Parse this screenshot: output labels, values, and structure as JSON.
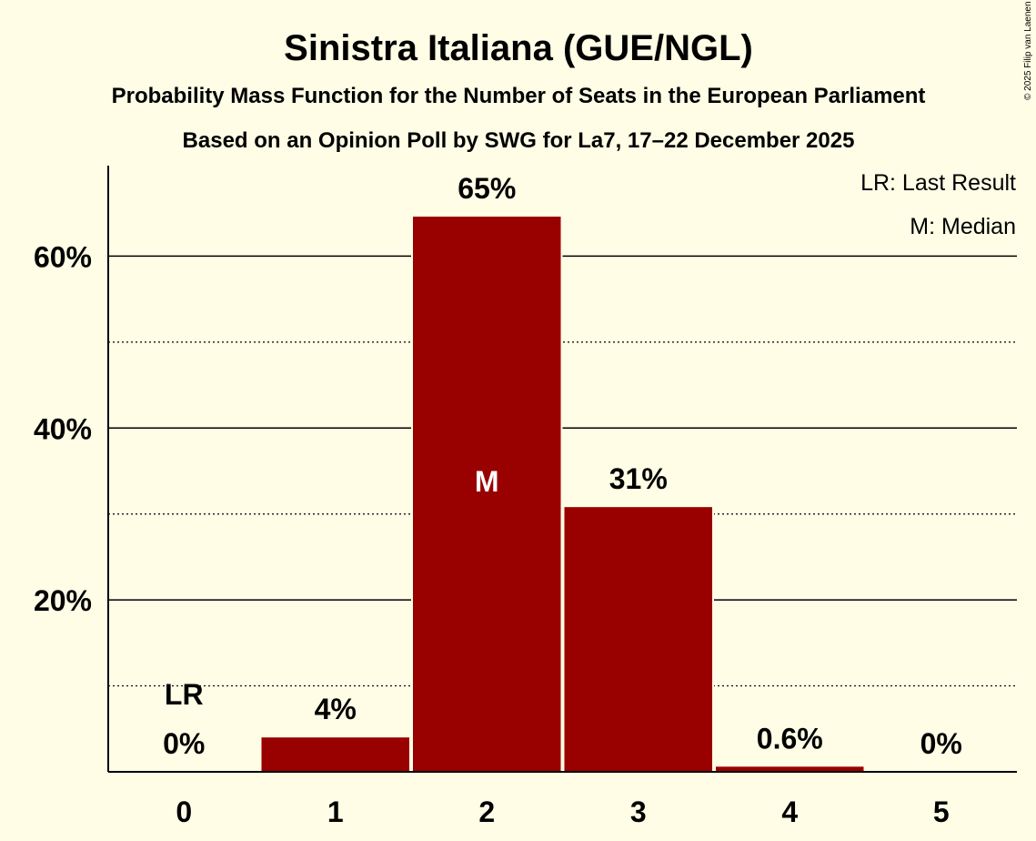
{
  "chart_data": {
    "type": "bar",
    "title": "Sinistra Italiana (GUE/NGL)",
    "subtitle": "Probability Mass Function for the Number of Seats in the European Parliament",
    "subtitle2": "Based on an Opinion Poll by SWG for La7, 17–22 December 2025",
    "copyright": "© 2025 Filip van Laenen",
    "categories": [
      "0",
      "1",
      "2",
      "3",
      "4",
      "5"
    ],
    "values": [
      0,
      4.0,
      64.6,
      30.8,
      0.6,
      0
    ],
    "value_labels": [
      "0%",
      "4%",
      "65%",
      "31%",
      "0.6%",
      "0%"
    ],
    "ylim": [
      0,
      70
    ],
    "yticks": [
      20,
      40,
      60
    ],
    "ytick_labels": [
      "20%",
      "40%",
      "60%"
    ],
    "minor_gridlines": [
      10,
      30,
      50
    ],
    "last_result_index": 0,
    "median_index": 2,
    "lr_marker": "LR",
    "median_marker": "M",
    "legend": [
      "LR: Last Result",
      "M: Median"
    ],
    "legend_position": "top-right",
    "bar_color": "#990000",
    "background_color": "#FFFDE6"
  }
}
